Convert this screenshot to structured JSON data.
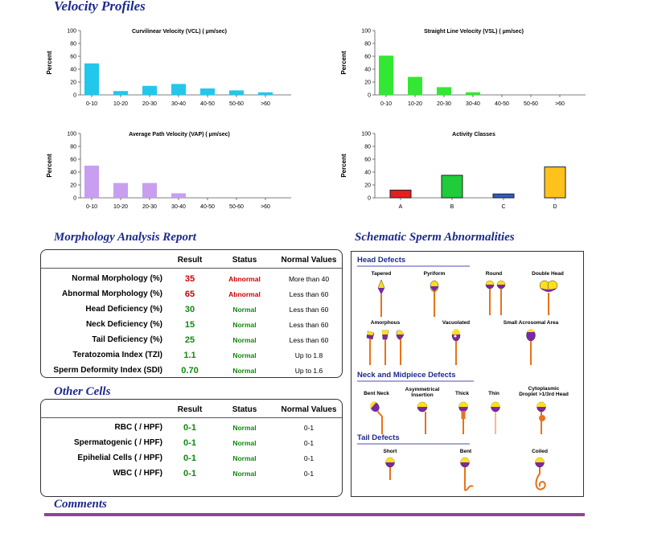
{
  "velocity_title": "Velocity Profiles",
  "chart_data": [
    {
      "type": "bar",
      "title": "Curvilinear Velocity (VCL) ( µm/sec)",
      "ylabel": "Percent",
      "categories": [
        "0-10",
        "10-20",
        "20-30",
        "30-40",
        "40-50",
        "50-60",
        ">60"
      ],
      "values": [
        49,
        6,
        14,
        17,
        10,
        7,
        4
      ],
      "ylim": [
        0,
        100
      ],
      "yticks": [
        0,
        20,
        40,
        60,
        80,
        100
      ],
      "color": "#22c7ec"
    },
    {
      "type": "bar",
      "title": "Straight Line Velocity (VSL) ( µm/sec)",
      "ylabel": "Percent",
      "categories": [
        "0-10",
        "10-20",
        "20-30",
        "30-40",
        "40-50",
        "50-60",
        ">60"
      ],
      "values": [
        61,
        28,
        12,
        4,
        0,
        0,
        0
      ],
      "ylim": [
        0,
        100
      ],
      "yticks": [
        0,
        20,
        40,
        60,
        80,
        100
      ],
      "color": "#33e833"
    },
    {
      "type": "bar",
      "title": "Average Path Velocity (VAP) ( µm/sec)",
      "ylabel": "Percent",
      "categories": [
        "0-10",
        "10-20",
        "20-30",
        "30-40",
        "40-50",
        "50-60",
        ">60"
      ],
      "values": [
        50,
        23,
        23,
        7,
        0,
        0,
        0
      ],
      "ylim": [
        0,
        100
      ],
      "yticks": [
        0,
        20,
        40,
        60,
        80,
        100
      ],
      "color": "#c79ef0"
    },
    {
      "type": "bar",
      "title": "Activity Classes",
      "ylabel": "Percent",
      "categories": [
        "A",
        "B",
        "C",
        "D"
      ],
      "values": [
        12,
        35,
        6,
        48
      ],
      "ylim": [
        0,
        100
      ],
      "yticks": [
        0,
        20,
        40,
        60,
        80,
        100
      ],
      "colors": [
        "#e51e1e",
        "#1fcc3a",
        "#2f5cc9",
        "#ffc21a"
      ]
    }
  ],
  "morphology": {
    "title": "Morphology Analysis Report",
    "headers": {
      "result": "Result",
      "status": "Status",
      "normal": "Normal Values"
    },
    "rows": [
      {
        "label": "Normal Morphology (%)",
        "result": "35",
        "status": "Abnormal",
        "normal": "More than 40"
      },
      {
        "label": "Abnormal Morphology (%)",
        "result": "65",
        "status": "Abnormal",
        "normal": "Less than 60"
      },
      {
        "label": "Head Deficiency (%)",
        "result": "30",
        "status": "Normal",
        "normal": "Less than 60"
      },
      {
        "label": "Neck Deficiency (%)",
        "result": "15",
        "status": "Normal",
        "normal": "Less than 60"
      },
      {
        "label": "Tail Deficiency (%)",
        "result": "25",
        "status": "Normal",
        "normal": "Less than 60"
      },
      {
        "label": "Teratozomia Index (TZI)",
        "result": "1.1",
        "status": "Normal",
        "normal": "Up to 1.8"
      },
      {
        "label": "Sperm Deformity Index (SDI)",
        "result": "0.70",
        "status": "Normal",
        "normal": "Up to 1.6"
      }
    ]
  },
  "other_cells": {
    "title": "Other Cells",
    "headers": {
      "result": "Result",
      "status": "Status",
      "normal": "Normal Values"
    },
    "rows": [
      {
        "label": "RBC ( / HPF)",
        "result": "0-1",
        "status": "Normal",
        "normal": "0-1"
      },
      {
        "label": "Spermatogenic  ( / HPF)",
        "result": "0-1",
        "status": "Normal",
        "normal": "0-1"
      },
      {
        "label": "Epihelial Cells ( / HPF)",
        "result": "0-1",
        "status": "Normal",
        "normal": "0-1"
      },
      {
        "label": "WBC ( / HPF)",
        "result": "0-1",
        "status": "Normal",
        "normal": "0-1"
      }
    ]
  },
  "schematic": {
    "title": "Schematic Sperm Abnormalities",
    "head_defects": {
      "title": "Head Defects",
      "tapered": "Tapered",
      "pyriform": "Pyriform",
      "round": "Round",
      "double_head": "Double Head",
      "amorphous": "Amorphous",
      "vacuolated": "Vacuolated",
      "small_acrosomal": "Small Acrosomal Area"
    },
    "neck_defects": {
      "title": "Neck and Midpiece Defects",
      "bent_neck": "Bent Neck",
      "asym_1": "Asymmetrical",
      "asym_2": "Insertion",
      "thick": "Thick",
      "thin": "Thin",
      "cyto_1": "Cytoplasmic",
      "cyto_2": "Droplet >1/3rd Head"
    },
    "tail_defects": {
      "title": "Tail Defects",
      "short": "Short",
      "bent": "Bent",
      "coiled": "Coiled"
    }
  },
  "comments_title": "Comments",
  "colors": {
    "title_blue": "#1c2a8c",
    "abnormal": "#cc0000",
    "normal": "#118811",
    "head_yellow": "#ffe01a",
    "head_purple": "#7b28a8",
    "tail_orange": "#e8731a",
    "divider_purple": "#8e4597"
  }
}
